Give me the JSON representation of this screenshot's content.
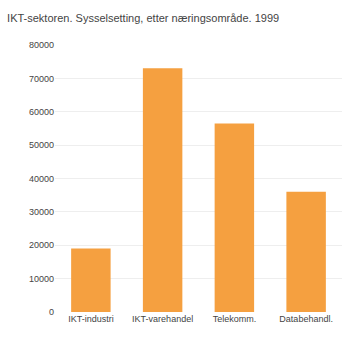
{
  "chart_data": {
    "type": "bar",
    "title": "IKT-sektoren. Sysselsetting, etter næringsområde. 1999",
    "categories": [
      "IKT-industri",
      "IKT-varehandel",
      "Telekomm.",
      "Databehandl."
    ],
    "values": [
      19000,
      73000,
      56500,
      36000
    ],
    "color": "#F5A040",
    "ylim": [
      0,
      80000
    ],
    "yticks": [
      0,
      10000,
      20000,
      30000,
      40000,
      50000,
      60000,
      70000,
      80000
    ],
    "grid": true
  }
}
